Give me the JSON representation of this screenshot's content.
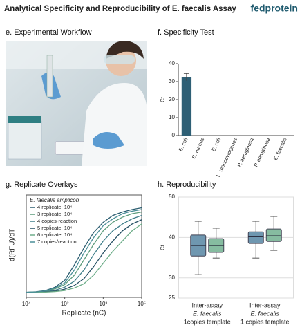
{
  "header": {
    "title": "Analytical Specificity and Reproducibility of E. faecalis Assay",
    "brand": "fedprotein"
  },
  "workflow": {
    "title": "e. Experimental Workflow"
  },
  "chart_data": [
    {
      "type": "bar",
      "title": "f. Specificity Test",
      "y_label": "Ct",
      "categories": [
        "E. coli",
        "S. aureus",
        "E. coli",
        "L. monocytogenes",
        "P. aeruginosa",
        "P. aeruginosa",
        "E. faecalis"
      ],
      "values": [
        32.5,
        0,
        0,
        0,
        0,
        0,
        0
      ],
      "errors": [
        2,
        0,
        0,
        0,
        0,
        0,
        0
      ],
      "color": "#2e5f75",
      "ylim": [
        0,
        40
      ],
      "yticks": [
        0,
        10,
        20,
        30,
        40
      ]
    },
    {
      "type": "line",
      "title": "g. Replicate Overlays",
      "x_label": "Replicate (nC)",
      "y_label": "-d(RFU)/dT",
      "legend_title": "E. faecalis amplicon",
      "legend": "upper-left",
      "x": [
        0,
        0.25,
        0.5,
        0.75,
        1,
        1.25,
        1.5,
        1.75,
        2,
        2.25,
        2.5,
        2.75,
        3
      ],
      "xlim": [
        0,
        3
      ],
      "ylim": [
        0,
        6
      ],
      "xticks": [
        {
          "value": 0,
          "label": "10⁴"
        },
        {
          "value": 1,
          "label": "10²"
        },
        {
          "value": 2,
          "label": "10³"
        },
        {
          "value": 3,
          "label": "10⁵"
        }
      ],
      "series": [
        {
          "name": "4 replicate: 10⁴",
          "color": "#2b5d70",
          "values": [
            0.3,
            0.33,
            0.4,
            0.6,
            1.0,
            1.9,
            2.9,
            3.8,
            4.4,
            4.8,
            5.0,
            5.15,
            5.25
          ]
        },
        {
          "name": "3 replicate: 10⁴",
          "color": "#5c9c7c",
          "values": [
            0.3,
            0.32,
            0.36,
            0.5,
            0.75,
            1.3,
            2.2,
            3.1,
            3.9,
            4.4,
            4.7,
            4.9,
            5.0
          ]
        },
        {
          "name": "4 copies-reaction",
          "color": "#3f7f8a",
          "values": [
            0.3,
            0.31,
            0.34,
            0.42,
            0.6,
            0.95,
            1.6,
            2.5,
            3.3,
            3.9,
            4.3,
            4.6,
            4.8
          ]
        },
        {
          "name": "5 replicate: 10⁴",
          "color": "#244f63",
          "values": [
            0.3,
            0.3,
            0.32,
            0.37,
            0.48,
            0.7,
            1.1,
            1.8,
            2.6,
            3.3,
            3.9,
            4.3,
            4.55
          ]
        },
        {
          "name": "6 replicate: 10⁴",
          "color": "#6fae8a",
          "values": [
            0.3,
            0.3,
            0.31,
            0.34,
            0.4,
            0.55,
            0.8,
            1.3,
            2.0,
            2.7,
            3.3,
            3.9,
            4.3
          ]
        },
        {
          "name": "7 copies/reaction",
          "color": "#4a8f98",
          "values": [
            0.3,
            0.32,
            0.38,
            0.55,
            0.85,
            1.6,
            2.6,
            3.5,
            4.2,
            4.6,
            4.9,
            5.05,
            5.15
          ]
        }
      ]
    },
    {
      "type": "box",
      "title": "h. Reproducibility",
      "y_label": "Ct",
      "ylim": [
        25,
        50
      ],
      "yticks": [
        25,
        30,
        40,
        50
      ],
      "grid": true,
      "groups": [
        {
          "label": [
            "Inter-assay",
            "E. faecalis",
            "1copies template"
          ],
          "boxes": [
            {
              "color": "#6f97b0",
              "min": 30.8,
              "q1": 35.4,
              "median": 38.0,
              "q3": 40.6,
              "max": 44.0
            },
            {
              "color": "#86bca0",
              "min": 34.9,
              "q1": 36.3,
              "median": 38.0,
              "q3": 39.7,
              "max": 42.3
            }
          ]
        },
        {
          "label": [
            "Inter-assay",
            "E. faecalis",
            "1 copies template"
          ],
          "boxes": [
            {
              "color": "#6f97b0",
              "min": 34.9,
              "q1": 38.5,
              "median": 40.2,
              "q3": 41.4,
              "max": 44.0
            },
            {
              "color": "#86bca0",
              "min": 36.8,
              "q1": 39.0,
              "median": 40.4,
              "q3": 42.1,
              "max": 45.2
            }
          ]
        }
      ]
    }
  ]
}
